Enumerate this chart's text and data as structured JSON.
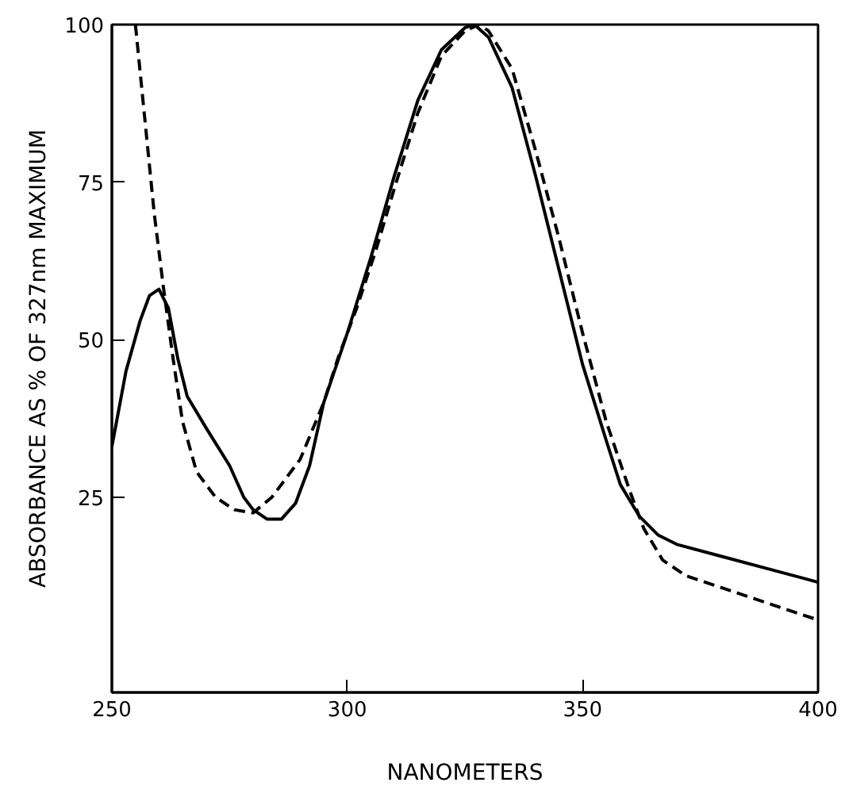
{
  "chart_data": {
    "type": "line",
    "xlabel": "NANOMETERS",
    "ylabel": "ABSORBANCE AS % OF 327nm MAXIMUM",
    "xlim": [
      250,
      400
    ],
    "ylim": [
      -6,
      100
    ],
    "xticks": [
      250,
      300,
      350,
      400
    ],
    "yticks": [
      25,
      50,
      75,
      100
    ],
    "series": [
      {
        "color": "#000000",
        "line_style": "solid",
        "x": [
          250,
          253,
          256,
          258,
          260,
          262,
          264,
          266,
          270,
          275,
          278,
          280,
          283,
          286,
          289,
          292,
          295,
          300,
          305,
          310,
          315,
          320,
          325,
          327,
          330,
          335,
          340,
          345,
          350,
          355,
          358,
          362,
          366,
          370,
          380,
          390,
          400
        ],
        "values": [
          33,
          45,
          53,
          57,
          58,
          55,
          47,
          41,
          36,
          30,
          25,
          23,
          21.5,
          21.5,
          24,
          30,
          40,
          51,
          63,
          76,
          88,
          96,
          99.5,
          100,
          98,
          90,
          76,
          61,
          46,
          34,
          27,
          22,
          19,
          17.5,
          15.5,
          13.5,
          11.5
        ]
      },
      {
        "color": "#000000",
        "line_style": "dashed",
        "x": [
          255,
          257,
          259,
          261,
          263,
          265,
          268,
          272,
          276,
          280,
          284,
          290,
          295,
          298,
          302,
          306,
          310,
          315,
          320,
          325,
          328,
          330,
          335,
          340,
          345,
          350,
          355,
          360,
          363,
          367,
          372,
          380,
          390,
          400
        ],
        "values": [
          100,
          85,
          70,
          58,
          47,
          37,
          29,
          25,
          23,
          22.5,
          25,
          31,
          40,
          47,
          55,
          64,
          74,
          86,
          95,
          99,
          100,
          99,
          93,
          80,
          66,
          51,
          37,
          26,
          20,
          15,
          12.5,
          10.5,
          8,
          5.5
        ]
      }
    ]
  }
}
